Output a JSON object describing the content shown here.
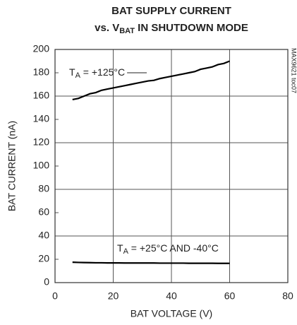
{
  "chart_data": {
    "type": "line",
    "title": {
      "line1": "BAT SUPPLY CURRENT",
      "line2": [
        "vs. V",
        "BAT",
        " IN SHUTDOWN MODE"
      ]
    },
    "xlabel": "BAT VOLTAGE (V)",
    "ylabel": "BAT CURRENT (nA)",
    "side_note": "MAX9621 toc07",
    "annotations": [
      [
        "T",
        "A",
        " = +125°C"
      ],
      [
        "T",
        "A",
        " = +25°C AND -40°C"
      ]
    ],
    "xlim": [
      0,
      80
    ],
    "xticks": [
      0,
      20,
      40,
      60,
      80
    ],
    "ylim": [
      0,
      200
    ],
    "yticks": [
      0,
      20,
      40,
      60,
      80,
      100,
      120,
      140,
      160,
      180,
      200
    ],
    "grid": true,
    "x": [
      6,
      8,
      10,
      12,
      14,
      16,
      18,
      20,
      22,
      24,
      26,
      28,
      30,
      32,
      34,
      36,
      38,
      40,
      42,
      44,
      46,
      48,
      50,
      52,
      54,
      56,
      58,
      60
    ],
    "series": [
      {
        "color": "#000000",
        "values": [
          157,
          158,
          160,
          162,
          163,
          165,
          166,
          167,
          168,
          169,
          170,
          171,
          172,
          173,
          173.5,
          175,
          176,
          177,
          178,
          179,
          180,
          181,
          183,
          184,
          185,
          187,
          188,
          190
        ]
      },
      {
        "color": "#000000",
        "values": [
          17.5,
          17.3,
          17.2,
          17.1,
          17,
          17,
          16.9,
          16.9,
          16.9,
          16.8,
          16.8,
          16.8,
          16.8,
          16.8,
          16.8,
          16.7,
          16.7,
          16.7,
          16.7,
          16.7,
          16.6,
          16.6,
          16.6,
          16.6,
          16.6,
          16.5,
          16.5,
          16.5
        ]
      }
    ]
  }
}
